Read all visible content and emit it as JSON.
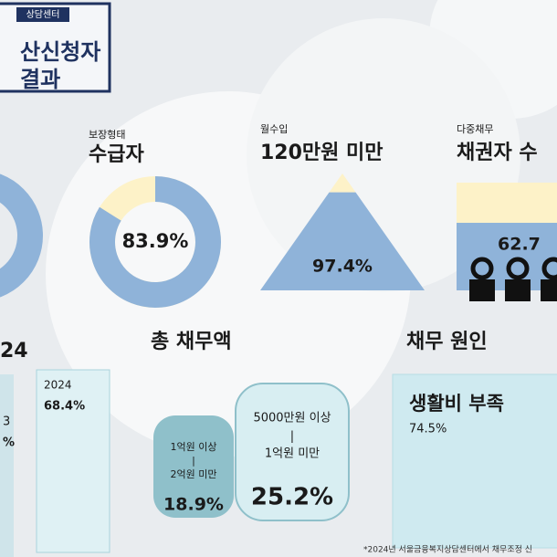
{
  "header": {
    "tag": "상담센터",
    "title_lines": [
      "산신청자",
      "결과"
    ]
  },
  "cards": [
    {
      "label": "보장형태",
      "title": "수급자",
      "value": 83.9,
      "value_label": "83.9%"
    },
    {
      "label": "월수입",
      "title": "120만원 미만",
      "value": 97.4,
      "value_label": "97.4%"
    },
    {
      "label": "다중채무",
      "title": "채권자 수",
      "value": 62.7,
      "value_label": "62.7"
    }
  ],
  "year_section": {
    "title": "24",
    "bars": [
      {
        "year": "3",
        "value_label": "%"
      },
      {
        "year": "2024",
        "value_label": "68.4%"
      }
    ]
  },
  "debt_total": {
    "title": "총 채무액",
    "bubbles": [
      {
        "range_top": "1억원 이상",
        "separator": "|",
        "range_bottom": "2억원 미만",
        "value_label": "18.9%"
      },
      {
        "range_top": "5000만원 이상",
        "separator": "|",
        "range_bottom": "1억원 미만",
        "value_label": "25.2%"
      }
    ]
  },
  "debt_cause": {
    "title": "채무 원인",
    "item": "생활비 부족",
    "value_label": "74.5%"
  },
  "footnote": "*2024년 서울금융복지상담센터에서 채무조정 신"
}
